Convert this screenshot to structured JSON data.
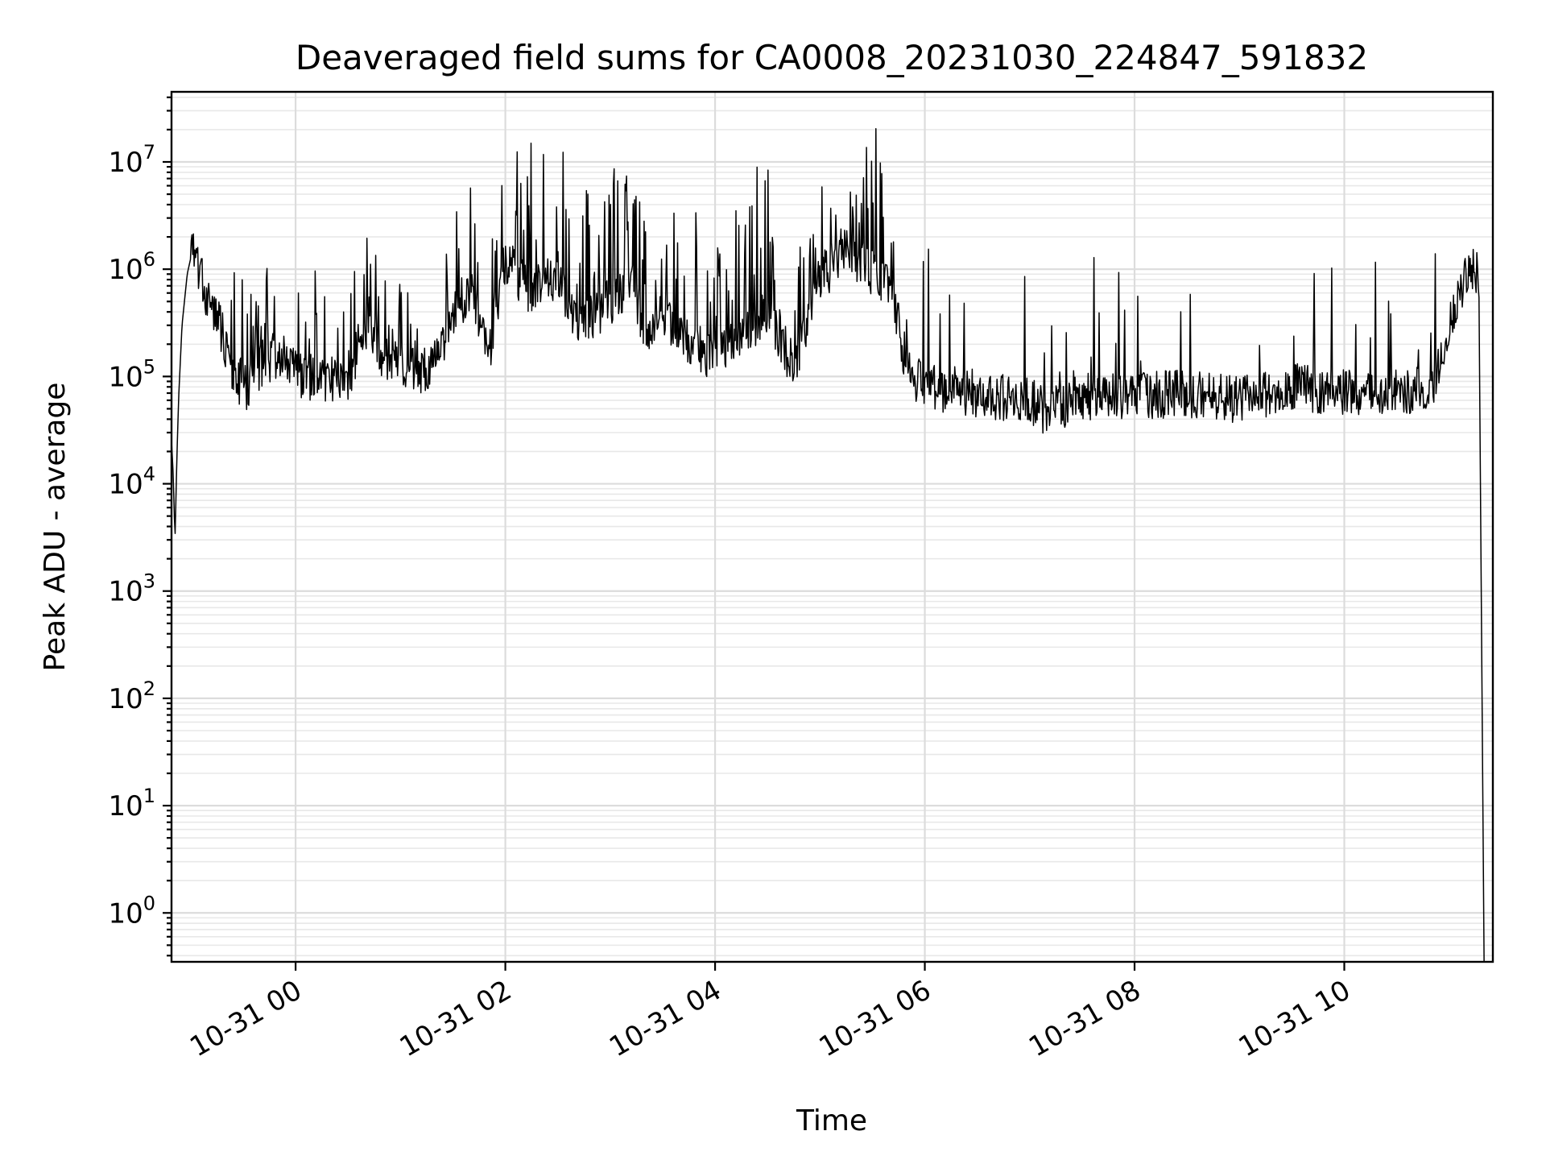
{
  "chart_data": {
    "type": "line",
    "title": "Deaveraged field sums for CA0008_20231030_224847_591832",
    "xlabel": "Time",
    "ylabel": "Peak ADU - average",
    "yscale": "log",
    "grid": true,
    "xlim": [
      "2023-10-30 22:49",
      "2023-10-31 11:25"
    ],
    "ylim": [
      0.35,
      45000000
    ],
    "x_ticks": [
      {
        "value": "2023-10-31 00:00",
        "label": "10-31 00"
      },
      {
        "value": "2023-10-31 02:00",
        "label": "10-31 02"
      },
      {
        "value": "2023-10-31 04:00",
        "label": "10-31 04"
      },
      {
        "value": "2023-10-31 06:00",
        "label": "10-31 06"
      },
      {
        "value": "2023-10-31 08:00",
        "label": "10-31 08"
      },
      {
        "value": "2023-10-31 10:00",
        "label": "10-31 10"
      }
    ],
    "y_ticks": [
      {
        "value": 1,
        "base": "10",
        "exp": "0"
      },
      {
        "value": 10,
        "base": "10",
        "exp": "1"
      },
      {
        "value": 100,
        "base": "10",
        "exp": "2"
      },
      {
        "value": 1000,
        "base": "10",
        "exp": "3"
      },
      {
        "value": 10000,
        "base": "10",
        "exp": "4"
      },
      {
        "value": 100000,
        "base": "10",
        "exp": "5"
      },
      {
        "value": 1000000,
        "base": "10",
        "exp": "6"
      },
      {
        "value": 10000000,
        "base": "10",
        "exp": "7"
      }
    ],
    "series": [
      {
        "color": "#000000",
        "x": [
          "2023-10-30 22:49",
          "2023-10-30 22:50",
          "2023-10-30 22:51",
          "2023-10-30 22:52",
          "2023-10-30 22:53",
          "2023-10-30 22:55",
          "2023-10-30 22:58",
          "2023-10-30 23:01",
          "2023-10-30 23:04",
          "2023-10-30 23:07",
          "2023-10-30 23:12",
          "2023-10-30 23:18",
          "2023-10-30 23:25",
          "2023-10-30 23:32",
          "2023-10-30 23:40",
          "2023-10-30 23:50",
          "2023-10-31 00:00",
          "2023-10-31 00:15",
          "2023-10-31 00:30",
          "2023-10-31 00:42",
          "2023-10-31 00:50",
          "2023-10-31 01:00",
          "2023-10-31 01:15",
          "2023-10-31 01:30",
          "2023-10-31 01:40",
          "2023-10-31 01:50",
          "2023-10-31 02:00",
          "2023-10-31 02:15",
          "2023-10-31 02:30",
          "2023-10-31 02:40",
          "2023-10-31 02:50",
          "2023-10-31 03:00",
          "2023-10-31 03:12",
          "2023-10-31 03:20",
          "2023-10-31 03:30",
          "2023-10-31 03:45",
          "2023-10-31 04:00",
          "2023-10-31 04:15",
          "2023-10-31 04:30",
          "2023-10-31 04:45",
          "2023-10-31 05:00",
          "2023-10-31 05:15",
          "2023-10-31 05:30",
          "2023-10-31 05:40",
          "2023-10-31 05:50",
          "2023-10-31 06:00",
          "2023-10-31 06:30",
          "2023-10-31 07:00",
          "2023-10-31 07:10",
          "2023-10-31 07:30",
          "2023-10-31 08:00",
          "2023-10-31 08:30",
          "2023-10-31 09:00",
          "2023-10-31 09:30",
          "2023-10-31 10:00",
          "2023-10-31 10:30",
          "2023-10-31 10:50",
          "2023-10-31 11:00",
          "2023-10-31 11:05",
          "2023-10-31 11:10",
          "2023-10-31 11:14",
          "2023-10-31 11:17",
          "2023-10-31 11:20"
        ],
        "y": [
          25000,
          12000,
          3000,
          15000,
          60000,
          300000,
          900000,
          1500000,
          1200000,
          700000,
          450000,
          250000,
          100000,
          80000,
          130000,
          160000,
          110000,
          90000,
          100000,
          350000,
          150000,
          130000,
          110000,
          350000,
          700000,
          150000,
          1200000,
          600000,
          900000,
          300000,
          350000,
          500000,
          800000,
          250000,
          350000,
          200000,
          150000,
          220000,
          400000,
          120000,
          800000,
          1500000,
          900000,
          700000,
          120000,
          80000,
          70000,
          60000,
          45000,
          65000,
          65000,
          70000,
          60000,
          80000,
          70000,
          72000,
          80000,
          300000,
          500000,
          900000,
          1000000,
          800000,
          0.35
        ]
      }
    ]
  }
}
